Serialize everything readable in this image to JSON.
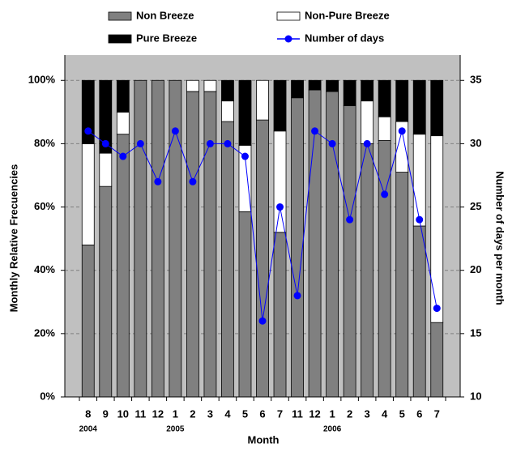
{
  "chart_data": {
    "type": "bar",
    "stacked": true,
    "x_label": "Month",
    "y_label": "Monthly Relative Frecuencies",
    "y2_label": "Number of days per month",
    "categories": [
      "8",
      "9",
      "10",
      "11",
      "12",
      "1",
      "2",
      "3",
      "4",
      "5",
      "6",
      "7",
      "11",
      "12",
      "1",
      "2",
      "3",
      "4",
      "5",
      "6",
      "7"
    ],
    "category_groups": [
      "2004",
      null,
      null,
      null,
      null,
      "2005",
      null,
      null,
      null,
      null,
      null,
      null,
      null,
      null,
      "2006",
      null,
      null,
      null,
      null,
      null,
      null
    ],
    "series": [
      {
        "name": "Non Breeze",
        "color": "#808080",
        "values": [
          48,
          66.5,
          83,
          100,
          100,
          100,
          96.5,
          96.5,
          87,
          58.5,
          87.5,
          52,
          94.5,
          97,
          96.5,
          92,
          80,
          81,
          71,
          54,
          23.5
        ]
      },
      {
        "name": "Non-Pure Breeze",
        "color": "#ffffff",
        "values": [
          32,
          10.5,
          7,
          0,
          0,
          0,
          3.5,
          3.5,
          6.5,
          21,
          12.5,
          32,
          0,
          0,
          0,
          0,
          13.5,
          7.5,
          16,
          29,
          59
        ]
      },
      {
        "name": "Pure Breeze",
        "color": "#000000",
        "values": [
          20,
          23,
          10,
          0,
          0,
          0,
          0,
          0,
          6.5,
          20.5,
          0,
          16,
          5.5,
          3,
          3.5,
          8,
          6.5,
          11.5,
          13,
          17,
          17.5
        ]
      },
      {
        "name": "Number of days",
        "color": "#0000ff",
        "type": "line",
        "axis": "y2",
        "values": [
          31,
          30,
          29,
          30,
          27,
          31,
          27,
          30,
          30,
          29,
          16,
          25,
          18,
          31,
          30,
          24,
          30,
          26,
          31,
          24,
          17
        ]
      }
    ],
    "ylim": [
      0,
      108
    ],
    "yticks": [
      {
        "value": 0,
        "label": "0%"
      },
      {
        "value": 20,
        "label": "20%"
      },
      {
        "value": 40,
        "label": "40%"
      },
      {
        "value": 60,
        "label": "60%"
      },
      {
        "value": 80,
        "label": "80%"
      },
      {
        "value": 100,
        "label": "100%"
      }
    ],
    "y2lim": [
      10,
      37
    ],
    "y2ticks": [
      10,
      15,
      20,
      25,
      30,
      35
    ],
    "grid": true,
    "background": "#c0c0c0",
    "legend": "top"
  }
}
